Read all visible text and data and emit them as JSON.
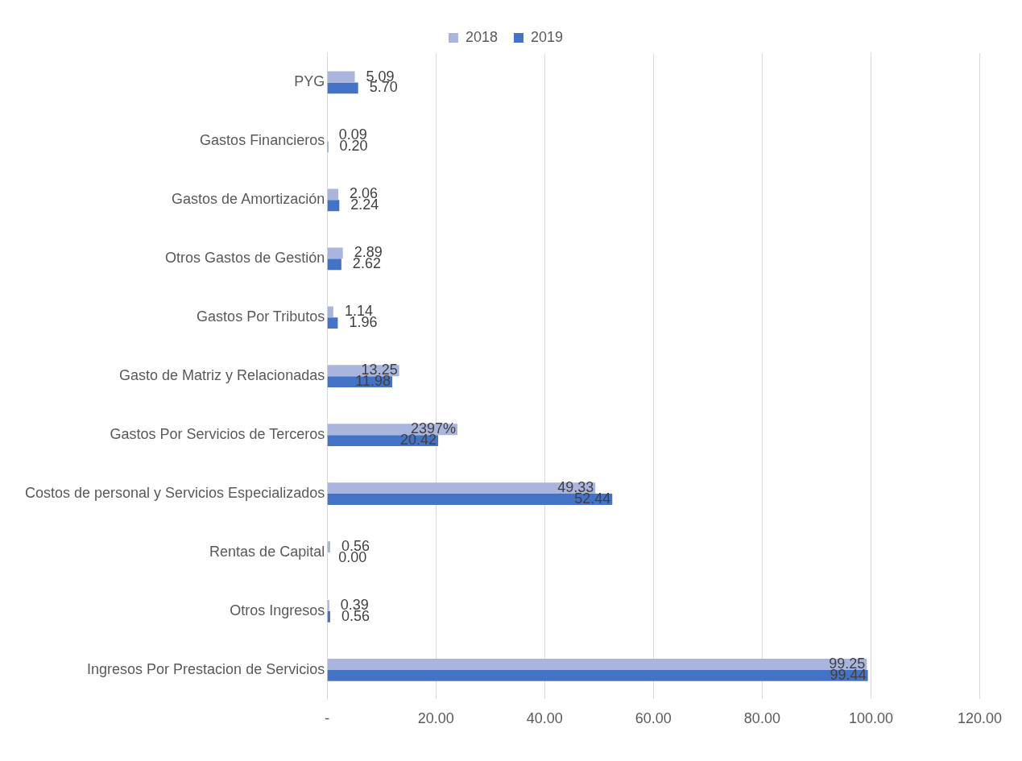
{
  "chart_data": {
    "type": "bar",
    "orientation": "horizontal",
    "categories": [
      "PYG",
      "Gastos Financieros",
      "Gastos de Amortización",
      "Otros Gastos de Gestión",
      "Gastos Por Tributos",
      "Gasto de Matriz y Relacionadas",
      "Gastos Por Servicios de Terceros",
      "Costos de personal y Servicios Especializados",
      "Rentas de Capital",
      "Otros Ingresos",
      "Ingresos Por Prestacion de Servicios"
    ],
    "series": [
      {
        "name": "2018",
        "color": "#a9b5dc",
        "values": [
          5.09,
          0.09,
          2.06,
          2.89,
          1.14,
          13.25,
          23.97,
          49.33,
          0.56,
          0.39,
          99.25
        ],
        "value_labels": [
          "5.09",
          "0.09",
          "2.06",
          "2.89",
          "1.14",
          "13.25",
          "2397%",
          "49.33",
          "0.56",
          "0.39",
          "99.25"
        ]
      },
      {
        "name": "2019",
        "color": "#4472c4",
        "values": [
          5.7,
          0.2,
          2.24,
          2.62,
          1.96,
          11.98,
          20.42,
          52.44,
          0.0,
          0.56,
          99.44
        ],
        "value_labels": [
          "5.70",
          "0.20",
          "2.24",
          "2.62",
          "1.96",
          "11.98",
          "20.42",
          "52.44",
          "0.00",
          "0.56",
          "99.44"
        ]
      }
    ],
    "xlim": [
      0,
      120
    ],
    "xticks": [
      {
        "value": 0,
        "label": "-"
      },
      {
        "value": 20,
        "label": "20.00"
      },
      {
        "value": 40,
        "label": "40.00"
      },
      {
        "value": 60,
        "label": "60.00"
      },
      {
        "value": 80,
        "label": "80.00"
      },
      {
        "value": 100,
        "label": "100.00"
      },
      {
        "value": 120,
        "label": "120.00"
      }
    ],
    "grid": "x",
    "legend": "top"
  }
}
